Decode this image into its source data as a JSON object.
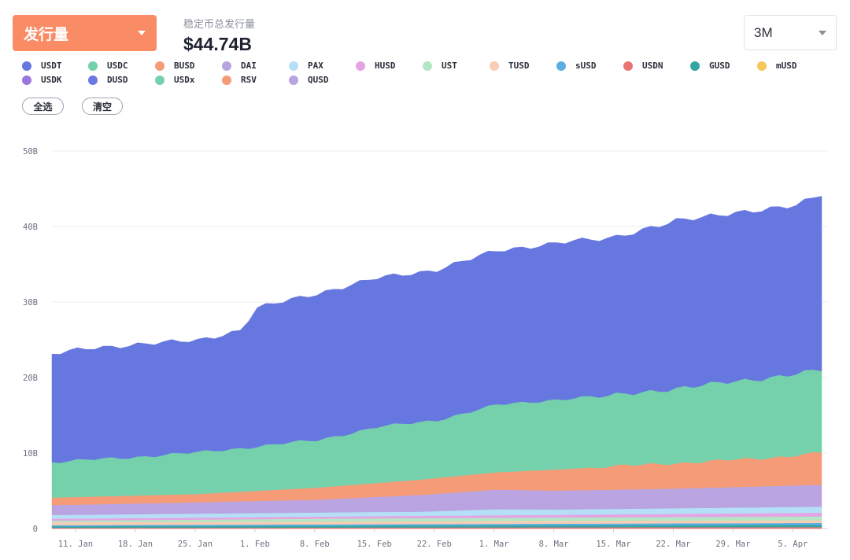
{
  "metric_select": {
    "label": "发行量"
  },
  "summary": {
    "subtitle": "稳定币总发行量",
    "value": "$44.74B"
  },
  "range_select": {
    "label": "3M"
  },
  "actions": {
    "select_all": "全选",
    "clear": "清空"
  },
  "legend": [
    {
      "name": "USDT",
      "color": "#6777e0"
    },
    {
      "name": "USDC",
      "color": "#74d1ab"
    },
    {
      "name": "BUSD",
      "color": "#f59b77"
    },
    {
      "name": "DAI",
      "color": "#b9a4e1"
    },
    {
      "name": "PAX",
      "color": "#b4dff6"
    },
    {
      "name": "HUSD",
      "color": "#e5a4e3"
    },
    {
      "name": "UST",
      "color": "#b3e7c4"
    },
    {
      "name": "TUSD",
      "color": "#f7cdb3"
    },
    {
      "name": "sUSD",
      "color": "#5aaee3"
    },
    {
      "name": "USDN",
      "color": "#e97373"
    },
    {
      "name": "GUSD",
      "color": "#33a6a0"
    },
    {
      "name": "mUSD",
      "color": "#f7c65b"
    },
    {
      "name": "USDK",
      "color": "#9a77dc"
    },
    {
      "name": "DUSD",
      "color": "#6a78e3"
    },
    {
      "name": "USDx",
      "color": "#74d1ab"
    },
    {
      "name": "RSV",
      "color": "#f59b77"
    },
    {
      "name": "QUSD",
      "color": "#b9a4e1"
    }
  ],
  "chart_data": {
    "type": "area",
    "stacked": true,
    "ylim": [
      0,
      50
    ],
    "y_ticks": [
      "0",
      "10B",
      "20B",
      "30B",
      "40B",
      "50B"
    ],
    "x_ticks": [
      "11. Jan",
      "18. Jan",
      "25. Jan",
      "1. Feb",
      "8. Feb",
      "15. Feb",
      "22. Feb",
      "1. Mar",
      "8. Mar",
      "15. Mar",
      "22. Mar",
      "29. Mar",
      "5. Apr"
    ],
    "x_range": [
      "2021-01-08",
      "2021-04-08"
    ],
    "grid": true,
    "series": [
      {
        "name": "USDN",
        "color": "#e97373",
        "x": [
          "2021-01-08",
          "2021-04-08"
        ],
        "y": [
          0.1,
          0.2
        ]
      },
      {
        "name": "GUSD",
        "color": "#33a6a0",
        "x": [
          "2021-01-08",
          "2021-04-08"
        ],
        "y": [
          0.2,
          0.3
        ]
      },
      {
        "name": "sUSD",
        "color": "#5aaee3",
        "x": [
          "2021-01-08",
          "2021-04-08"
        ],
        "y": [
          0.15,
          0.25
        ]
      },
      {
        "name": "TUSD",
        "color": "#f7cdb3",
        "x": [
          "2021-01-08",
          "2021-04-08"
        ],
        "y": [
          0.4,
          0.35
        ]
      },
      {
        "name": "UST",
        "color": "#b3e7c4",
        "x": [
          "2021-01-08",
          "2021-02-15",
          "2021-04-08"
        ],
        "y": [
          0.2,
          0.4,
          0.5
        ]
      },
      {
        "name": "HUSD",
        "color": "#e5a4e3",
        "x": [
          "2021-01-08",
          "2021-02-20",
          "2021-04-08"
        ],
        "y": [
          0.25,
          0.3,
          0.5
        ]
      },
      {
        "name": "PAX",
        "color": "#b4dff6",
        "x": [
          "2021-01-08",
          "2021-02-20",
          "2021-03-01",
          "2021-03-08",
          "2021-04-08"
        ],
        "y": [
          0.5,
          0.55,
          0.8,
          0.7,
          0.8
        ]
      },
      {
        "name": "DAI",
        "color": "#b9a4e1",
        "x": [
          "2021-01-08",
          "2021-01-25",
          "2021-02-08",
          "2021-02-22",
          "2021-03-01",
          "2021-03-08",
          "2021-03-22",
          "2021-04-08"
        ],
        "y": [
          1.3,
          1.5,
          1.7,
          2.3,
          2.6,
          2.5,
          2.6,
          2.9
        ]
      },
      {
        "name": "BUSD",
        "color": "#f59b77",
        "x": [
          "2021-01-08",
          "2021-01-25",
          "2021-02-08",
          "2021-02-22",
          "2021-03-01",
          "2021-03-08",
          "2021-03-22",
          "2021-04-01",
          "2021-04-08"
        ],
        "y": [
          1.0,
          1.1,
          1.6,
          2.1,
          2.3,
          2.8,
          3.4,
          3.7,
          4.3
        ]
      },
      {
        "name": "USDC",
        "color": "#74d1ab",
        "x": [
          "2021-01-08",
          "2021-01-15",
          "2021-01-25",
          "2021-02-01",
          "2021-02-08",
          "2021-02-15",
          "2021-02-22",
          "2021-03-01",
          "2021-03-08",
          "2021-03-15",
          "2021-03-22",
          "2021-04-01",
          "2021-04-08"
        ],
        "y": [
          4.7,
          5.0,
          5.5,
          5.9,
          6.3,
          7.4,
          7.7,
          8.9,
          9.3,
          9.4,
          9.9,
          10.6,
          10.9
        ]
      },
      {
        "name": "USDT",
        "color": "#6777e0",
        "x": [
          "2021-01-08",
          "2021-01-12",
          "2021-01-18",
          "2021-01-25",
          "2021-01-30",
          "2021-02-01",
          "2021-02-08",
          "2021-02-15",
          "2021-02-22",
          "2021-03-01",
          "2021-03-08",
          "2021-03-15",
          "2021-03-22",
          "2021-03-29",
          "2021-04-05",
          "2021-04-08"
        ],
        "y": [
          14.3,
          14.7,
          14.9,
          14.8,
          15.6,
          18.3,
          19.4,
          19.7,
          19.9,
          20.4,
          20.7,
          20.9,
          22.2,
          22.3,
          22.3,
          23.3
        ]
      }
    ]
  }
}
